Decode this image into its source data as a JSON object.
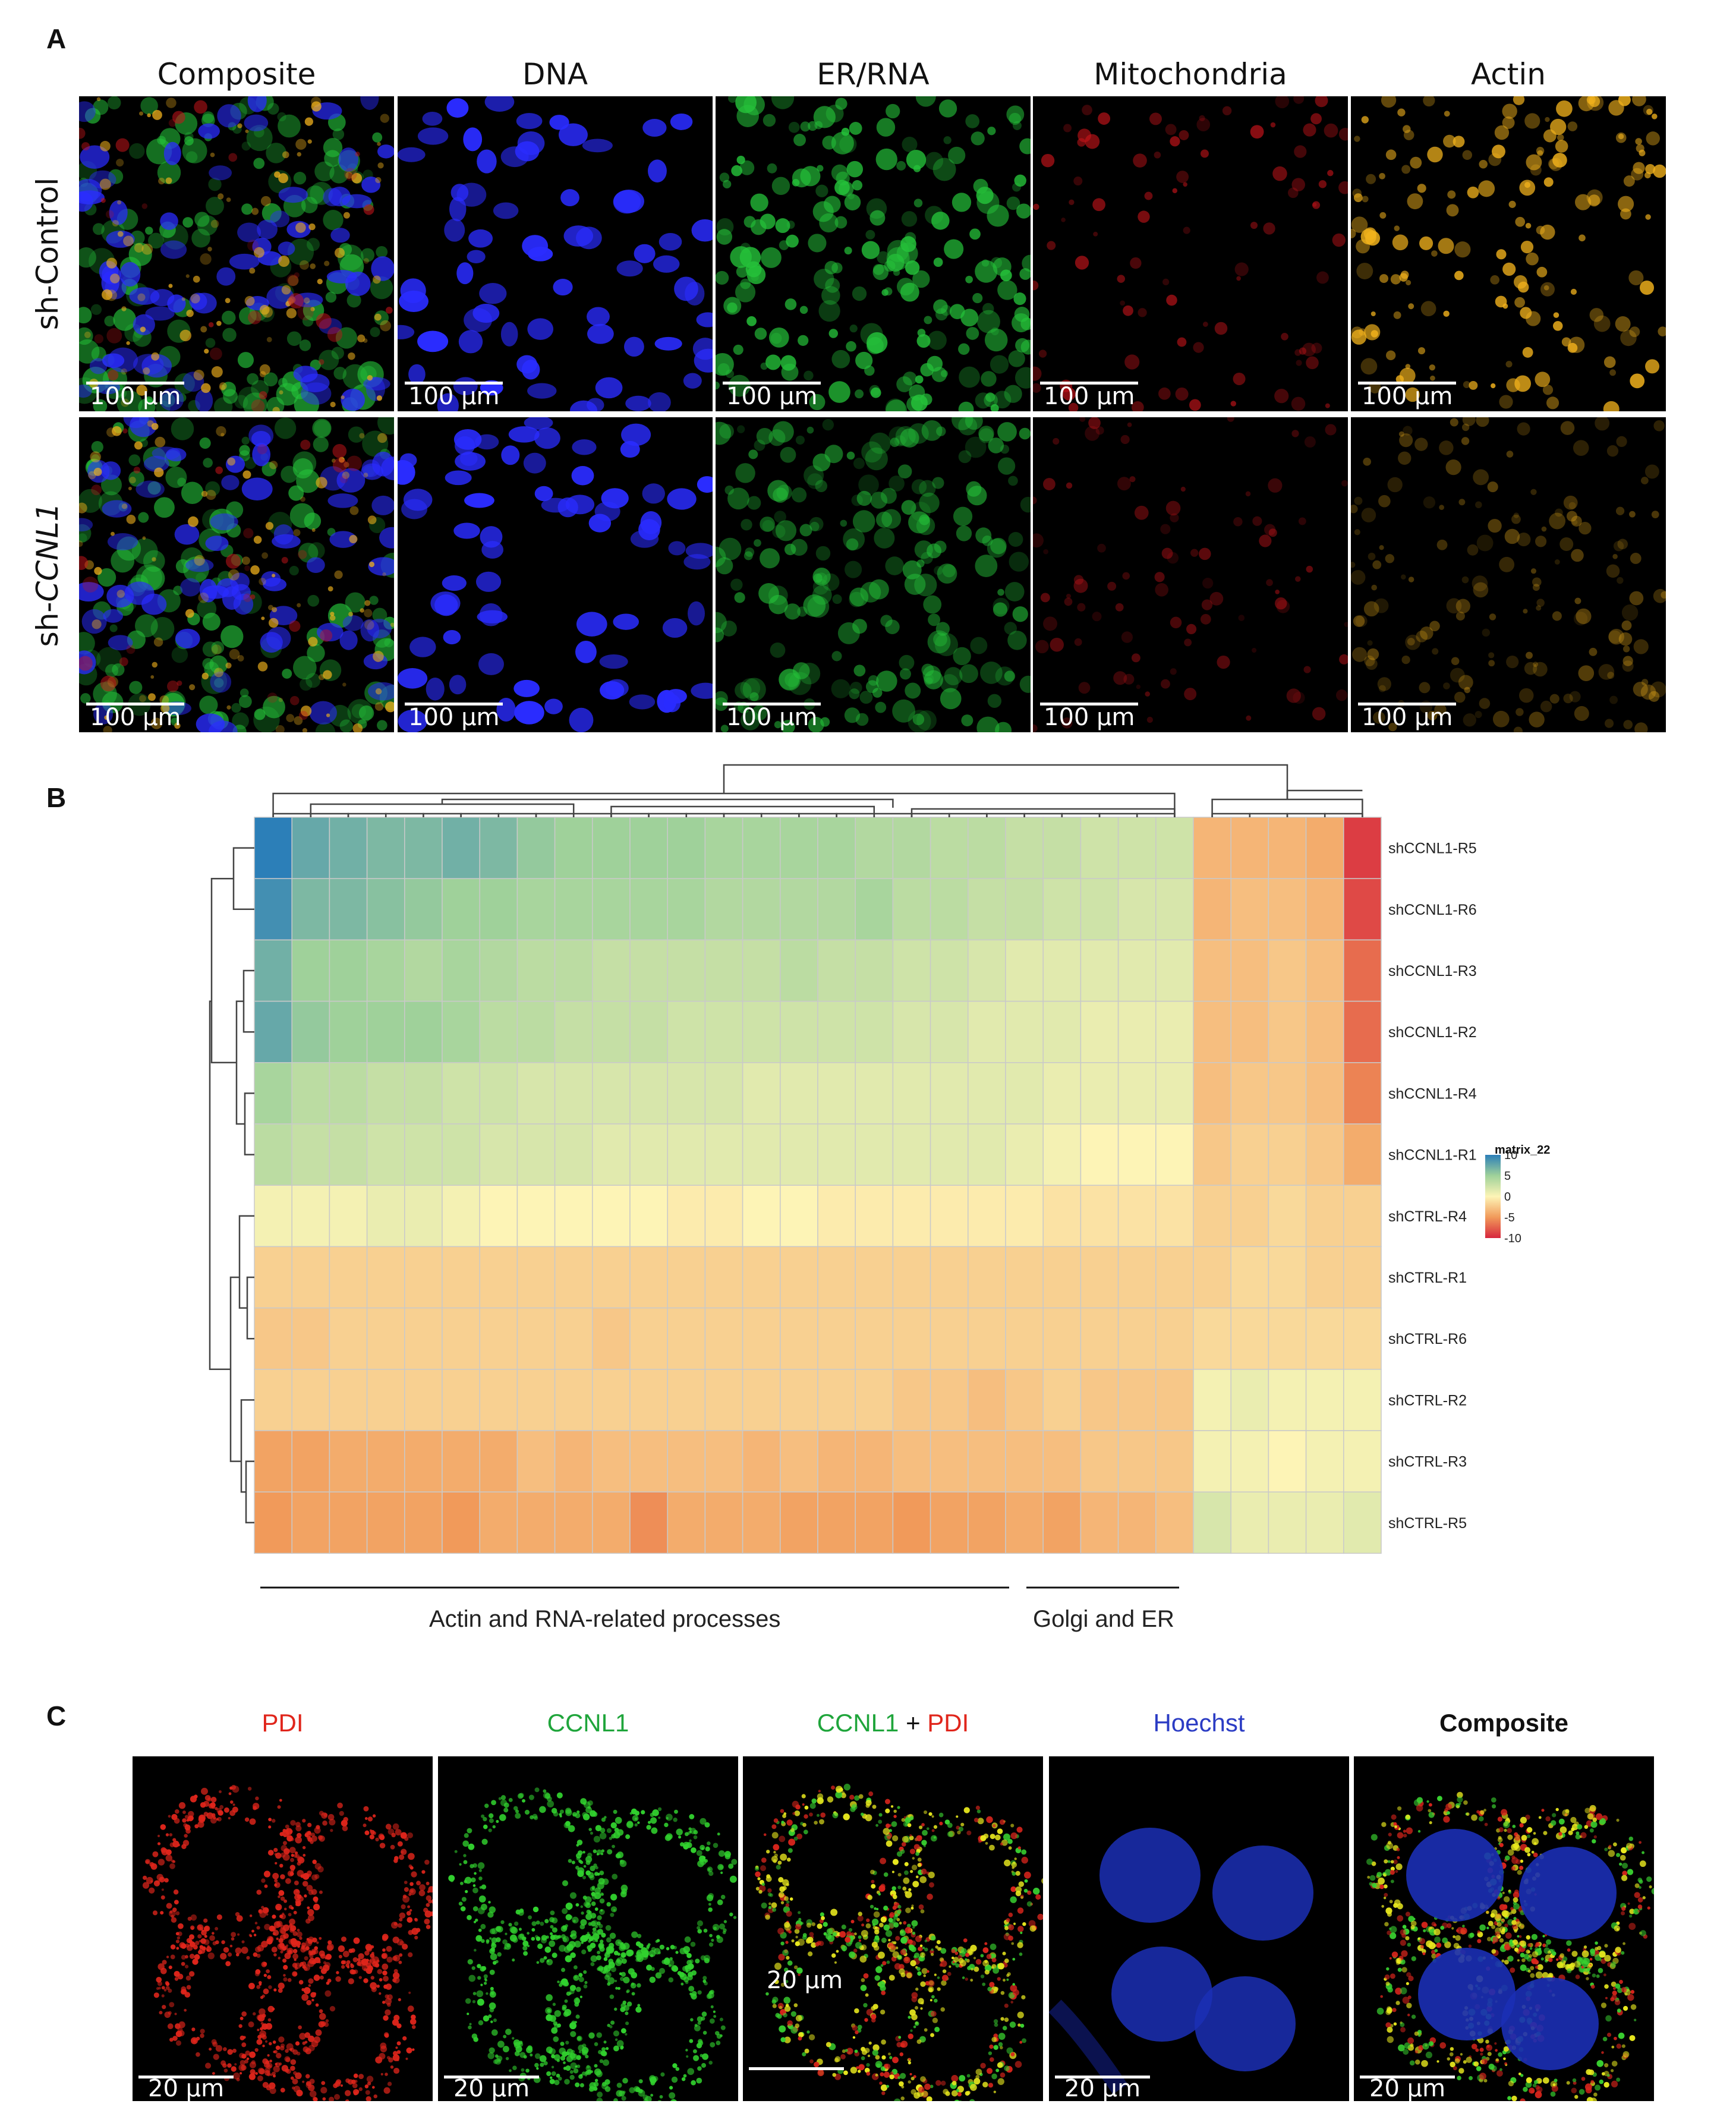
{
  "panel_a": {
    "letter": "A",
    "columns": [
      "Composite",
      "DNA",
      "ER/RNA",
      "Mitochondria",
      "Actin"
    ],
    "rows": [
      {
        "prefix": "sh-",
        "name": "Control",
        "italic": false
      },
      {
        "prefix": "sh-",
        "name": "CCNL1",
        "italic": true
      }
    ],
    "scale_bar": "100 µm",
    "channel_colors": {
      "DNA": "#2a2cff",
      "ER/RNA": "#25c33a",
      "Mitochondria": "#c8141a",
      "Actin": "#f2b21c"
    }
  },
  "panel_b": {
    "letter": "B",
    "legend_title": "matrix_22",
    "annotation_left": "Actin and RNA-related processes",
    "annotation_right": "Golgi and ER",
    "chart_data": {
      "type": "heatmap",
      "rows": [
        "shCCNL1-R5",
        "shCCNL1-R6",
        "shCCNL1-R3",
        "shCCNL1-R2",
        "shCCNL1-R4",
        "shCCNL1-R1",
        "shCTRL-R4",
        "shCTRL-R1",
        "shCTRL-R6",
        "shCTRL-R2",
        "shCTRL-R3",
        "shCTRL-R5"
      ],
      "n_columns": 30,
      "color_scale": {
        "min": -10,
        "max": 10,
        "ticks": [
          10,
          5,
          0,
          -5,
          -10
        ],
        "colors": [
          "#d7263d",
          "#f19a5a",
          "#fdf4b6",
          "#9fd19a",
          "#2c7fb8"
        ]
      },
      "values": [
        [
          10,
          7.5,
          7,
          6.5,
          6.5,
          7,
          6.5,
          5.5,
          5,
          5,
          5,
          5,
          4.5,
          4.5,
          4.5,
          4.5,
          4,
          4,
          3.5,
          3.5,
          3,
          3,
          2.5,
          2.5,
          2.5,
          -3.5,
          -3.5,
          -3.5,
          -4,
          -9
        ],
        [
          9,
          6.5,
          6.5,
          6,
          5.5,
          5,
          5,
          4.5,
          4.5,
          4.5,
          4.5,
          4.5,
          4,
          4,
          4,
          4,
          4.5,
          3.5,
          3.5,
          3,
          3,
          2.5,
          2.5,
          2,
          2,
          -3.5,
          -3,
          -3,
          -3.5,
          -8.5
        ],
        [
          7,
          5,
          5,
          4.5,
          4,
          4.5,
          4,
          3.5,
          3.5,
          3,
          3,
          3,
          3,
          3,
          3.5,
          3,
          3,
          2.5,
          2.5,
          2,
          1.5,
          1.5,
          1.5,
          1.5,
          1.5,
          -3,
          -3,
          -2.5,
          -3,
          -7
        ],
        [
          7.5,
          5.5,
          5,
          5,
          5,
          4.5,
          3.5,
          3.5,
          3,
          3,
          3,
          2.5,
          2.5,
          2.5,
          2.5,
          2.5,
          2.5,
          2,
          2,
          1.5,
          1.5,
          1.5,
          1,
          1,
          1,
          -3,
          -3,
          -2.5,
          -3,
          -7
        ],
        [
          4.5,
          3.5,
          3.5,
          3,
          3,
          2.5,
          2.5,
          2,
          2,
          2,
          2,
          2,
          2,
          1.5,
          1.5,
          1.5,
          1.5,
          1.5,
          1.5,
          1.5,
          1.5,
          1,
          1,
          1,
          1,
          -3,
          -2.5,
          -2.5,
          -3,
          -6
        ],
        [
          3.5,
          3,
          3,
          2.5,
          2.5,
          2.5,
          2,
          2,
          2,
          1.5,
          1.5,
          1.5,
          1.5,
          1.5,
          1.5,
          1.5,
          1.5,
          1.5,
          1.5,
          1.5,
          1,
          0.5,
          0,
          0,
          0,
          -2.5,
          -2,
          -2,
          -2.5,
          -4
        ],
        [
          0.5,
          0.5,
          0.5,
          1,
          1,
          0.5,
          0,
          0,
          0,
          0,
          0,
          -0.5,
          -0.5,
          0,
          0,
          -0.5,
          -0.5,
          -0.5,
          -0.5,
          -0.5,
          -0.5,
          -1,
          -1,
          -1,
          -1,
          -2,
          -2,
          -1.5,
          -2,
          -2
        ],
        [
          -2,
          -2,
          -2,
          -2,
          -2,
          -2,
          -2,
          -2,
          -2,
          -2,
          -2,
          -2,
          -2,
          -2,
          -2,
          -2,
          -2,
          -2,
          -2,
          -2,
          -2,
          -2,
          -2,
          -2,
          -2,
          -2,
          -1.5,
          -1.5,
          -2,
          -2
        ],
        [
          -2.5,
          -2.5,
          -2,
          -2,
          -2,
          -2,
          -2,
          -2,
          -2,
          -2.5,
          -2,
          -2,
          -2,
          -2,
          -2,
          -2,
          -2,
          -2,
          -2,
          -2,
          -2,
          -2,
          -2,
          -2,
          -2,
          -1.5,
          -1.5,
          -1.5,
          -1.5,
          -1.5
        ],
        [
          -2,
          -2,
          -2,
          -2,
          -2,
          -2,
          -2,
          -2,
          -2,
          -2,
          -2,
          -2,
          -2,
          -2,
          -2,
          -2,
          -2,
          -2.5,
          -2.5,
          -3,
          -2.5,
          -2,
          -2.5,
          -2.5,
          -2.5,
          0.5,
          1,
          0.5,
          0.5,
          0.5
        ],
        [
          -4.5,
          -4.5,
          -4,
          -4,
          -4,
          -4,
          -4,
          -3,
          -3.5,
          -3,
          -3,
          -3,
          -3,
          -3.5,
          -3,
          -3.5,
          -3.5,
          -3,
          -3,
          -3,
          -3,
          -3,
          -2.5,
          -2.5,
          -2.5,
          0.5,
          0.5,
          0,
          0.5,
          0.5
        ],
        [
          -5,
          -4.5,
          -4.5,
          -4.5,
          -4.5,
          -5,
          -4,
          -4,
          -4,
          -4,
          -5.5,
          -4,
          -4,
          -4,
          -4.5,
          -4.5,
          -4.5,
          -5,
          -4.5,
          -4.5,
          -4,
          -4.5,
          -3.5,
          -3.5,
          -3,
          2,
          1,
          1,
          1,
          1.5
        ]
      ]
    }
  },
  "panel_c": {
    "letter": "C",
    "heads": [
      [
        {
          "text": "PDI",
          "color": "#e0251b"
        }
      ],
      [
        {
          "text": "CCNL1",
          "color": "#1fa53b"
        }
      ],
      [
        {
          "text": "CCNL1",
          "color": "#1fa53b"
        },
        {
          "text": " + ",
          "color": "#111111"
        },
        {
          "text": "PDI",
          "color": "#e0251b"
        }
      ],
      [
        {
          "text": "Hoechst",
          "color": "#2b3cc4"
        }
      ],
      [
        {
          "text": "Composite",
          "color": "#111111",
          "bold": true
        }
      ]
    ],
    "scale_bar": "20 µm"
  }
}
